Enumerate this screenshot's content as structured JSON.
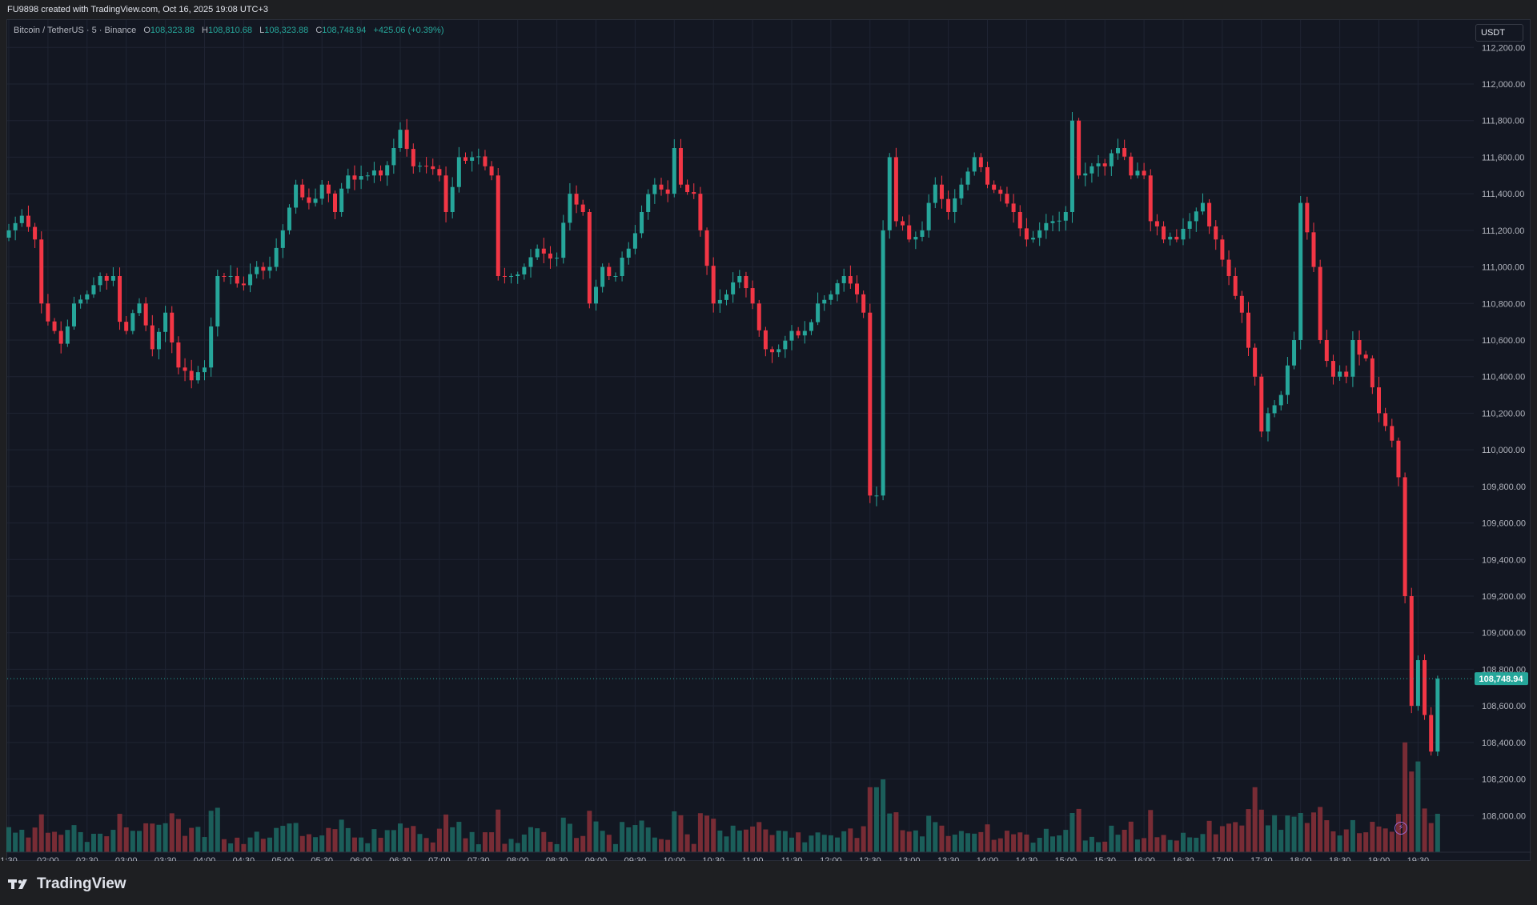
{
  "banner": {
    "text": "FU9898 created with TradingView.com, Oct 16, 2025 19:08 UTC+3"
  },
  "legend": {
    "symbol": "Bitcoin / TetherUS · 5 · Binance",
    "open_label": "O",
    "open": "108,323.88",
    "high_label": "H",
    "high": "108,810.68",
    "low_label": "L",
    "low": "108,323.88",
    "close_label": "C",
    "close": "108,748.94",
    "change": "+425.06 (+0.39%)"
  },
  "currency": "USDT",
  "last_price_label": "108,748.94",
  "brand": "TradingView",
  "colors": {
    "up": "#26a69a",
    "down": "#f23645",
    "vol_up": "#1d6b64",
    "vol_down": "#8b3038",
    "grid": "#1f2433",
    "background": "#131722"
  },
  "chart_data": {
    "type": "candlestick",
    "symbol": "BTCUSDT",
    "interval": "5",
    "ylim": [
      107800,
      112350
    ],
    "y_ticks": [
      112200,
      112000,
      111800,
      111600,
      111400,
      111200,
      111000,
      110800,
      110600,
      110400,
      110200,
      110000,
      109800,
      109600,
      109400,
      109200,
      109000,
      108800,
      108600,
      108400,
      108200,
      108000
    ],
    "y_tick_labels": [
      "112,200.00",
      "112,000.00",
      "111,800.00",
      "111,600.00",
      "111,400.00",
      "111,200.00",
      "111,000.00",
      "110,800.00",
      "110,600.00",
      "110,400.00",
      "110,200.00",
      "110,000.00",
      "109,800.00",
      "109,600.00",
      "109,400.00",
      "109,200.00",
      "109,000.00",
      "108,800.00",
      "108,600.00",
      "108,400.00",
      "108,200.00",
      "108,000.00"
    ],
    "x_ticks": [
      "1:30",
      "02:00",
      "02:30",
      "03:00",
      "03:30",
      "04:00",
      "04:30",
      "05:00",
      "05:30",
      "06:00",
      "06:30",
      "07:00",
      "07:30",
      "08:00",
      "08:30",
      "09:00",
      "09:30",
      "10:00",
      "10:30",
      "11:00",
      "11:30",
      "12:00",
      "12:30",
      "13:00",
      "13:30",
      "14:00",
      "14:30",
      "15:00",
      "15:30",
      "16:00",
      "16:30",
      "17:00",
      "17:30",
      "18:00",
      "18:30",
      "19:00",
      "19:30"
    ],
    "x_tick_bar_index": [
      0,
      6,
      12,
      18,
      24,
      30,
      36,
      42,
      48,
      54,
      60,
      66,
      72,
      78,
      84,
      90,
      96,
      102,
      108,
      114,
      120,
      126,
      132,
      138,
      144,
      150,
      156,
      162,
      168,
      174,
      180,
      186,
      192,
      198,
      204,
      210,
      216
    ],
    "last_price": 108748.94,
    "anchors": [
      [
        0,
        111200
      ],
      [
        2,
        111280
      ],
      [
        4,
        111150
      ],
      [
        5,
        110800
      ],
      [
        7,
        110650
      ],
      [
        8,
        110580
      ],
      [
        10,
        110800
      ],
      [
        12,
        110850
      ],
      [
        14,
        110950
      ],
      [
        16,
        110950
      ],
      [
        17,
        110700
      ],
      [
        18,
        110650
      ],
      [
        20,
        110800
      ],
      [
        22,
        110550
      ],
      [
        24,
        110750
      ],
      [
        26,
        110450
      ],
      [
        28,
        110380
      ],
      [
        30,
        110450
      ],
      [
        32,
        110950
      ],
      [
        34,
        110950
      ],
      [
        36,
        110900
      ],
      [
        38,
        111000
      ],
      [
        40,
        111000
      ],
      [
        42,
        111200
      ],
      [
        44,
        111450
      ],
      [
        46,
        111350
      ],
      [
        48,
        111450
      ],
      [
        50,
        111300
      ],
      [
        52,
        111500
      ],
      [
        55,
        111500
      ],
      [
        57,
        111500
      ],
      [
        59,
        111650
      ],
      [
        60,
        111750
      ],
      [
        62,
        111550
      ],
      [
        64,
        111550
      ],
      [
        66,
        111500
      ],
      [
        67,
        111300
      ],
      [
        69,
        111600
      ],
      [
        71,
        111600
      ],
      [
        73,
        111550
      ],
      [
        74,
        111500
      ],
      [
        75,
        110950
      ],
      [
        77,
        110950
      ],
      [
        79,
        111000
      ],
      [
        81,
        111100
      ],
      [
        84,
        111050
      ],
      [
        86,
        111400
      ],
      [
        88,
        111300
      ],
      [
        89,
        110800
      ],
      [
        91,
        111000
      ],
      [
        93,
        110950
      ],
      [
        95,
        111100
      ],
      [
        97,
        111300
      ],
      [
        99,
        111450
      ],
      [
        101,
        111400
      ],
      [
        102,
        111650
      ],
      [
        103,
        111450
      ],
      [
        105,
        111400
      ],
      [
        106,
        111200
      ],
      [
        108,
        110800
      ],
      [
        110,
        110850
      ],
      [
        112,
        110950
      ],
      [
        114,
        110800
      ],
      [
        116,
        110550
      ],
      [
        118,
        110550
      ],
      [
        120,
        110650
      ],
      [
        122,
        110650
      ],
      [
        124,
        110800
      ],
      [
        126,
        110850
      ],
      [
        128,
        110950
      ],
      [
        130,
        110850
      ],
      [
        131,
        110750
      ],
      [
        132,
        109750
      ],
      [
        133,
        109750
      ],
      [
        134,
        111200
      ],
      [
        135,
        111600
      ],
      [
        136,
        111250
      ],
      [
        138,
        111150
      ],
      [
        140,
        111200
      ],
      [
        141,
        111350
      ],
      [
        142,
        111450
      ],
      [
        144,
        111300
      ],
      [
        146,
        111450
      ],
      [
        148,
        111600
      ],
      [
        150,
        111450
      ],
      [
        152,
        111400
      ],
      [
        154,
        111300
      ],
      [
        156,
        111150
      ],
      [
        158,
        111200
      ],
      [
        160,
        111250
      ],
      [
        162,
        111300
      ],
      [
        163,
        111800
      ],
      [
        164,
        111500
      ],
      [
        166,
        111550
      ],
      [
        168,
        111550
      ],
      [
        170,
        111650
      ],
      [
        172,
        111500
      ],
      [
        174,
        111500
      ],
      [
        175,
        111250
      ],
      [
        177,
        111150
      ],
      [
        179,
        111150
      ],
      [
        181,
        111250
      ],
      [
        183,
        111350
      ],
      [
        185,
        111150
      ],
      [
        187,
        110950
      ],
      [
        189,
        110750
      ],
      [
        191,
        110400
      ],
      [
        192,
        110100
      ],
      [
        193,
        110200
      ],
      [
        195,
        110300
      ],
      [
        197,
        110600
      ],
      [
        198,
        111350
      ],
      [
        200,
        111000
      ],
      [
        201,
        110600
      ],
      [
        203,
        110400
      ],
      [
        205,
        110400
      ],
      [
        206,
        110600
      ],
      [
        208,
        110500
      ],
      [
        210,
        110200
      ],
      [
        212,
        110050
      ],
      [
        213,
        109850
      ],
      [
        214,
        109200
      ],
      [
        215,
        108600
      ],
      [
        216,
        108850
      ],
      [
        217,
        108550
      ],
      [
        218,
        108350
      ],
      [
        219,
        108748.94
      ]
    ],
    "volume_spikes": [
      [
        132,
        0.58
      ],
      [
        133,
        0.58
      ],
      [
        134,
        0.65
      ],
      [
        163,
        0.35
      ],
      [
        191,
        0.58
      ],
      [
        194,
        0.33
      ],
      [
        198,
        0.35
      ],
      [
        214,
        0.98
      ],
      [
        215,
        0.72
      ],
      [
        216,
        0.81
      ],
      [
        217,
        0.39
      ],
      [
        218,
        0.26
      ]
    ],
    "current_time_price_label": "108,748.94"
  }
}
